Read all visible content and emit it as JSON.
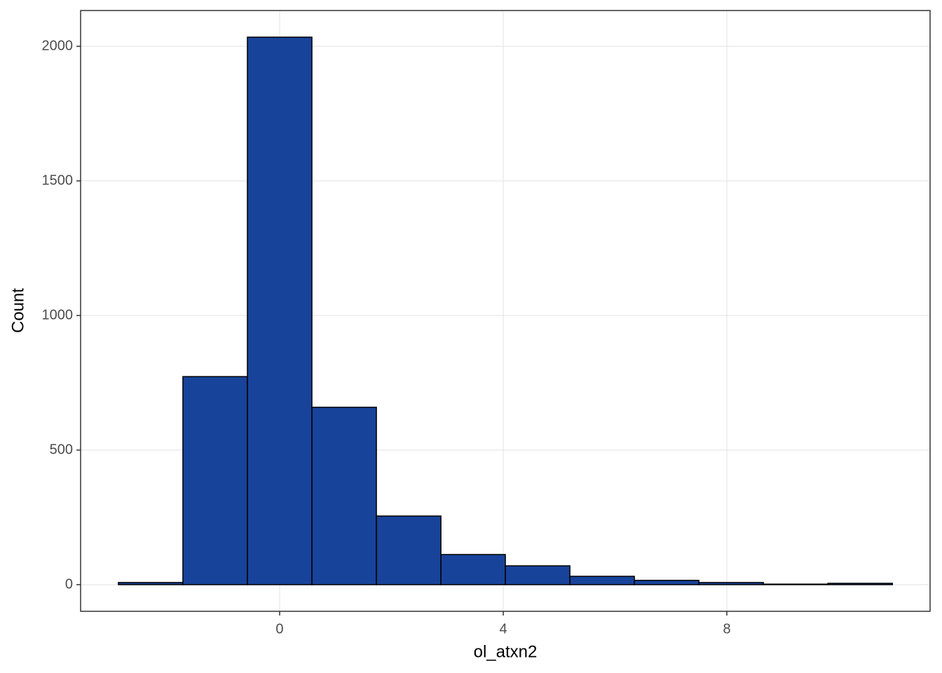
{
  "chart_data": {
    "type": "histogram",
    "x_label": "ol_atxn2",
    "y_label": "Count",
    "bins": [
      -2.885,
      -1.731,
      -0.577,
      0.577,
      1.731,
      2.885,
      4.038,
      5.192,
      6.346,
      7.5,
      8.654,
      9.808,
      10.962
    ],
    "values": [
      8,
      773,
      2034,
      659,
      255,
      112,
      70,
      31,
      16,
      8,
      2,
      5
    ],
    "color": "#18439a",
    "edge_color": "#000000",
    "xlim": [
      -3.561,
      11.636
    ],
    "xticks": [
      0,
      4,
      8
    ],
    "ylim": [
      -99,
      2133
    ],
    "yticks": [
      0,
      500,
      1000,
      1500,
      2000
    ],
    "grid": true
  }
}
